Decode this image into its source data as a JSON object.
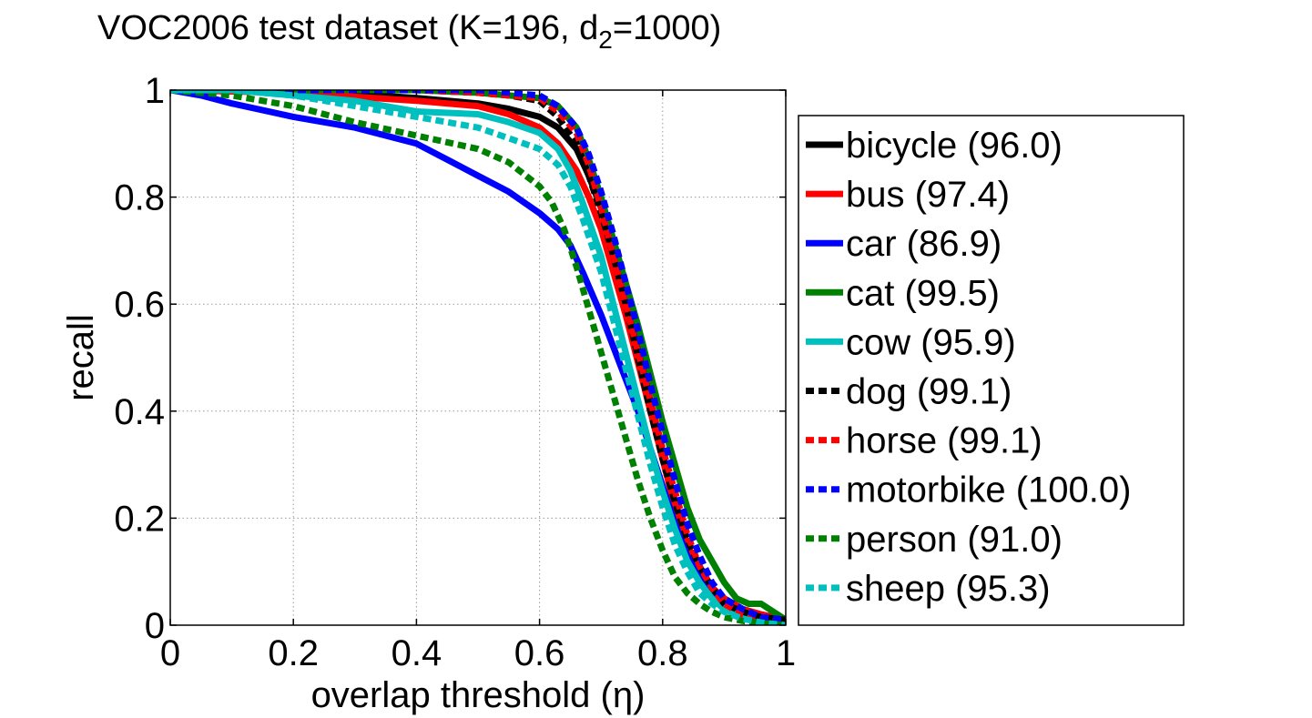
{
  "chart_data": {
    "type": "line",
    "title": {
      "main": "VOC2006 test dataset (K=196, d",
      "subscript": "2",
      "tail": "=1000)"
    },
    "xlabel": "overlap threshold (η)",
    "ylabel": "recall",
    "xlim": [
      0,
      1
    ],
    "ylim": [
      0,
      1
    ],
    "grid": true,
    "legend_position": "outside-right",
    "x_ticks": [
      0,
      0.2,
      0.4,
      0.6,
      0.8,
      1
    ],
    "y_ticks": [
      0,
      0.2,
      0.4,
      0.6,
      0.8,
      1
    ],
    "x_tick_labels": [
      "0",
      "0.2",
      "0.4",
      "0.6",
      "0.8",
      "1"
    ],
    "y_tick_labels": [
      "0",
      "0.2",
      "0.4",
      "0.6",
      "0.8",
      "1"
    ],
    "series": [
      {
        "name": "bicycle",
        "legend_label": "bicycle (96.0)",
        "color": "#000000",
        "style": "solid",
        "x": [
          0,
          0.2,
          0.4,
          0.5,
          0.55,
          0.6,
          0.63,
          0.66,
          0.68,
          0.7,
          0.72,
          0.74,
          0.76,
          0.78,
          0.8,
          0.82,
          0.84,
          0.86,
          0.88,
          0.9,
          0.93,
          0.96,
          1.0
        ],
        "y": [
          1.0,
          1.0,
          0.985,
          0.975,
          0.965,
          0.95,
          0.93,
          0.89,
          0.84,
          0.78,
          0.7,
          0.62,
          0.52,
          0.42,
          0.32,
          0.23,
          0.15,
          0.1,
          0.07,
          0.05,
          0.03,
          0.02,
          0.01
        ]
      },
      {
        "name": "bus",
        "legend_label": "bus (97.4)",
        "color": "#ff0000",
        "style": "solid",
        "x": [
          0,
          0.2,
          0.4,
          0.5,
          0.55,
          0.6,
          0.63,
          0.66,
          0.68,
          0.7,
          0.72,
          0.74,
          0.76,
          0.78,
          0.8,
          0.82,
          0.84,
          0.86,
          0.88,
          0.9,
          0.93,
          0.96,
          1.0
        ],
        "y": [
          1.0,
          0.995,
          0.98,
          0.97,
          0.955,
          0.93,
          0.9,
          0.85,
          0.8,
          0.74,
          0.66,
          0.58,
          0.49,
          0.4,
          0.31,
          0.22,
          0.15,
          0.1,
          0.07,
          0.05,
          0.03,
          0.02,
          0.01
        ]
      },
      {
        "name": "car",
        "legend_label": "car (86.9)",
        "color": "#0000ff",
        "style": "solid",
        "x": [
          0,
          0.05,
          0.1,
          0.2,
          0.3,
          0.4,
          0.45,
          0.5,
          0.55,
          0.6,
          0.63,
          0.65,
          0.67,
          0.7,
          0.72,
          0.74,
          0.76,
          0.78,
          0.8,
          0.82,
          0.84,
          0.86,
          0.88,
          0.9,
          0.93,
          0.96,
          1.0
        ],
        "y": [
          1.0,
          0.99,
          0.975,
          0.95,
          0.93,
          0.9,
          0.87,
          0.84,
          0.81,
          0.77,
          0.74,
          0.71,
          0.66,
          0.58,
          0.52,
          0.46,
          0.4,
          0.33,
          0.26,
          0.19,
          0.13,
          0.09,
          0.06,
          0.04,
          0.025,
          0.015,
          0.01
        ]
      },
      {
        "name": "cat",
        "legend_label": "cat (99.5)",
        "color": "#008000",
        "style": "solid",
        "x": [
          0,
          0.2,
          0.4,
          0.5,
          0.55,
          0.6,
          0.63,
          0.66,
          0.68,
          0.7,
          0.72,
          0.74,
          0.76,
          0.78,
          0.8,
          0.82,
          0.84,
          0.86,
          0.88,
          0.9,
          0.92,
          0.94,
          0.96,
          0.98,
          1.0
        ],
        "y": [
          1.0,
          1.0,
          1.0,
          0.995,
          0.99,
          0.985,
          0.97,
          0.93,
          0.87,
          0.8,
          0.72,
          0.64,
          0.56,
          0.47,
          0.38,
          0.3,
          0.22,
          0.16,
          0.12,
          0.08,
          0.05,
          0.04,
          0.04,
          0.025,
          0.01
        ]
      },
      {
        "name": "cow",
        "legend_label": "cow (95.9)",
        "color": "#00bfbf",
        "style": "solid",
        "x": [
          0,
          0.1,
          0.2,
          0.3,
          0.4,
          0.5,
          0.55,
          0.6,
          0.63,
          0.65,
          0.67,
          0.7,
          0.72,
          0.74,
          0.76,
          0.78,
          0.8,
          0.82,
          0.84,
          0.86,
          0.88,
          0.9,
          0.93,
          0.96,
          1.0
        ],
        "y": [
          1.0,
          1.0,
          0.99,
          0.98,
          0.96,
          0.955,
          0.94,
          0.92,
          0.89,
          0.85,
          0.79,
          0.69,
          0.6,
          0.51,
          0.42,
          0.33,
          0.25,
          0.18,
          0.12,
          0.08,
          0.05,
          0.03,
          0.015,
          0.01,
          0.005
        ]
      },
      {
        "name": "dog",
        "legend_label": "dog (99.1)",
        "color": "#000000",
        "style": "dashed",
        "x": [
          0,
          0.2,
          0.4,
          0.5,
          0.55,
          0.6,
          0.63,
          0.66,
          0.68,
          0.7,
          0.72,
          0.74,
          0.76,
          0.78,
          0.8,
          0.82,
          0.84,
          0.86,
          0.88,
          0.9,
          0.93,
          0.96,
          1.0
        ],
        "y": [
          1.0,
          1.0,
          1.0,
          0.995,
          0.99,
          0.98,
          0.95,
          0.9,
          0.84,
          0.77,
          0.69,
          0.6,
          0.5,
          0.4,
          0.31,
          0.23,
          0.16,
          0.11,
          0.07,
          0.04,
          0.025,
          0.015,
          0.01
        ]
      },
      {
        "name": "horse",
        "legend_label": "horse (99.1)",
        "color": "#ff0000",
        "style": "dashed",
        "x": [
          0,
          0.2,
          0.4,
          0.5,
          0.55,
          0.6,
          0.63,
          0.66,
          0.68,
          0.7,
          0.72,
          0.74,
          0.76,
          0.78,
          0.8,
          0.82,
          0.84,
          0.86,
          0.88,
          0.9,
          0.93,
          0.96,
          1.0
        ],
        "y": [
          1.0,
          1.0,
          1.0,
          0.995,
          0.99,
          0.985,
          0.96,
          0.92,
          0.86,
          0.78,
          0.69,
          0.6,
          0.51,
          0.42,
          0.33,
          0.25,
          0.17,
          0.11,
          0.07,
          0.04,
          0.02,
          0.01,
          0.005
        ]
      },
      {
        "name": "motorbike",
        "legend_label": "motorbike (100.0)",
        "color": "#0000ff",
        "style": "dashed",
        "x": [
          0,
          0.2,
          0.4,
          0.5,
          0.55,
          0.6,
          0.63,
          0.66,
          0.68,
          0.7,
          0.72,
          0.74,
          0.76,
          0.78,
          0.8,
          0.82,
          0.84,
          0.86,
          0.88,
          0.9,
          0.93,
          0.96,
          1.0
        ],
        "y": [
          1.0,
          1.0,
          1.0,
          1.0,
          0.995,
          0.99,
          0.97,
          0.93,
          0.88,
          0.81,
          0.73,
          0.64,
          0.55,
          0.45,
          0.36,
          0.27,
          0.19,
          0.13,
          0.08,
          0.05,
          0.03,
          0.015,
          0.01
        ]
      },
      {
        "name": "person",
        "legend_label": "person (91.0)",
        "color": "#008000",
        "style": "dashed",
        "x": [
          0,
          0.1,
          0.2,
          0.3,
          0.4,
          0.5,
          0.55,
          0.6,
          0.62,
          0.64,
          0.66,
          0.68,
          0.7,
          0.72,
          0.74,
          0.76,
          0.78,
          0.8,
          0.82,
          0.84,
          0.86,
          0.88,
          0.9,
          0.93,
          0.96,
          1.0
        ],
        "y": [
          1.0,
          0.99,
          0.97,
          0.94,
          0.915,
          0.89,
          0.865,
          0.82,
          0.79,
          0.74,
          0.67,
          0.59,
          0.51,
          0.43,
          0.35,
          0.27,
          0.2,
          0.14,
          0.09,
          0.06,
          0.04,
          0.025,
          0.015,
          0.008,
          0.004,
          0.0
        ]
      },
      {
        "name": "sheep",
        "legend_label": "sheep (95.3)",
        "color": "#00bfbf",
        "style": "dashed",
        "x": [
          0,
          0.1,
          0.2,
          0.3,
          0.4,
          0.5,
          0.55,
          0.6,
          0.63,
          0.65,
          0.67,
          0.7,
          0.72,
          0.74,
          0.76,
          0.78,
          0.8,
          0.82,
          0.84,
          0.86,
          0.88,
          0.9,
          0.93,
          0.96,
          1.0
        ],
        "y": [
          1.0,
          1.0,
          0.99,
          0.97,
          0.95,
          0.93,
          0.91,
          0.89,
          0.86,
          0.82,
          0.76,
          0.66,
          0.57,
          0.48,
          0.39,
          0.3,
          0.22,
          0.15,
          0.1,
          0.06,
          0.04,
          0.025,
          0.012,
          0.005,
          0.0
        ]
      }
    ]
  }
}
